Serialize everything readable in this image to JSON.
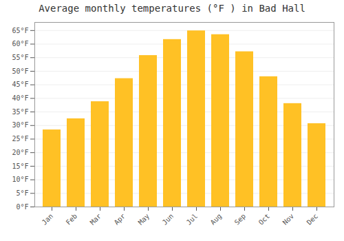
{
  "chart_data": {
    "type": "bar",
    "title": "Average monthly temperatures (°F ) in Bad Hall",
    "categories": [
      "Jan",
      "Feb",
      "Mar",
      "Apr",
      "May",
      "Jun",
      "Jul",
      "Aug",
      "Sep",
      "Oct",
      "Nov",
      "Dec"
    ],
    "values": [
      28.4,
      32.5,
      38.8,
      47.3,
      55.8,
      61.7,
      64.9,
      63.5,
      57.2,
      48.0,
      38.1,
      30.7
    ],
    "color": "#FFC125",
    "ylim": [
      0,
      68
    ],
    "yticks": [
      {
        "value": 0,
        "label": "0°F"
      },
      {
        "value": 5,
        "label": "5°F"
      },
      {
        "value": 10,
        "label": "10°F"
      },
      {
        "value": 15,
        "label": "15°F"
      },
      {
        "value": 20,
        "label": "20°F"
      },
      {
        "value": 25,
        "label": "25°F"
      },
      {
        "value": 30,
        "label": "30°F"
      },
      {
        "value": 35,
        "label": "35°F"
      },
      {
        "value": 40,
        "label": "40°F"
      },
      {
        "value": 45,
        "label": "45°F"
      },
      {
        "value": 50,
        "label": "50°F"
      },
      {
        "value": 55,
        "label": "55°F"
      },
      {
        "value": 60,
        "label": "60°F"
      },
      {
        "value": 65,
        "label": "65°F"
      }
    ],
    "grid": true
  }
}
